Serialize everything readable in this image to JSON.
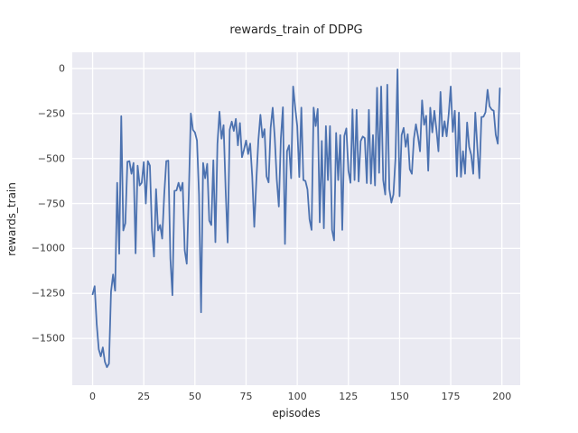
{
  "figure": {
    "title": "rewards_train of DDPG",
    "xlabel": "episodes",
    "ylabel": "rewards_train"
  },
  "chart_data": {
    "type": "line",
    "title": "rewards_train of DDPG",
    "xlabel": "episodes",
    "ylabel": "rewards_train",
    "grid": true,
    "legend": "none",
    "x_ticks": [
      0,
      25,
      50,
      75,
      100,
      125,
      150,
      175,
      200
    ],
    "y_ticks": [
      0,
      -250,
      -500,
      -750,
      -1000,
      -1250,
      -1500
    ],
    "xlim": [
      -9.95,
      208.95
    ],
    "ylim": [
      -1760,
      90
    ],
    "style": {
      "line_color": "#4C72B0",
      "plot_bg": "#EAEAF2",
      "grid_color": "#FFFFFF",
      "fig_bg": "#FFFFFF",
      "text_color": "#262626",
      "line_width": 1.8
    },
    "series": [
      {
        "name": "rewards_train",
        "x_start": 0,
        "x_step": 1,
        "values": [
          -1255,
          -1210,
          -1420,
          -1560,
          -1600,
          -1550,
          -1630,
          -1660,
          -1640,
          -1240,
          -1145,
          -1235,
          -635,
          -1030,
          -265,
          -900,
          -860,
          -518,
          -515,
          -585,
          -525,
          -1027,
          -540,
          -650,
          -635,
          -520,
          -750,
          -515,
          -540,
          -900,
          -1045,
          -670,
          -900,
          -870,
          -945,
          -700,
          -515,
          -512,
          -1055,
          -1260,
          -680,
          -677,
          -635,
          -680,
          -635,
          -1010,
          -1085,
          -700,
          -250,
          -340,
          -355,
          -400,
          -700,
          -1355,
          -525,
          -610,
          -530,
          -845,
          -870,
          -510,
          -965,
          -420,
          -240,
          -390,
          -315,
          -673,
          -967,
          -340,
          -295,
          -347,
          -280,
          -427,
          -303,
          -493,
          -450,
          -400,
          -475,
          -417,
          -600,
          -880,
          -625,
          -400,
          -257,
          -383,
          -337,
          -600,
          -633,
          -330,
          -218,
          -383,
          -617,
          -767,
          -387,
          -215,
          -975,
          -460,
          -427,
          -610,
          -100,
          -217,
          -320,
          -603,
          -217,
          -620,
          -625,
          -672,
          -838,
          -897,
          -217,
          -320,
          -225,
          -855,
          -403,
          -888,
          -320,
          -620,
          -320,
          -897,
          -955,
          -358,
          -620,
          -370,
          -897,
          -375,
          -333,
          -568,
          -635,
          -227,
          -620,
          -230,
          -628,
          -403,
          -378,
          -387,
          -637,
          -230,
          -640,
          -370,
          -650,
          -107,
          -580,
          -100,
          -620,
          -700,
          -90,
          -670,
          -745,
          -700,
          -500,
          -5,
          -710,
          -370,
          -330,
          -435,
          -365,
          -560,
          -585,
          -390,
          -310,
          -377,
          -460,
          -177,
          -313,
          -263,
          -568,
          -218,
          -355,
          -235,
          -338,
          -460,
          -130,
          -377,
          -293,
          -377,
          -255,
          -100,
          -352,
          -235,
          -600,
          -245,
          -602,
          -460,
          -585,
          -300,
          -435,
          -480,
          -585,
          -245,
          -437,
          -610,
          -270,
          -268,
          -243,
          -118,
          -210,
          -228,
          -235,
          -368,
          -418,
          -110
        ]
      }
    ]
  }
}
